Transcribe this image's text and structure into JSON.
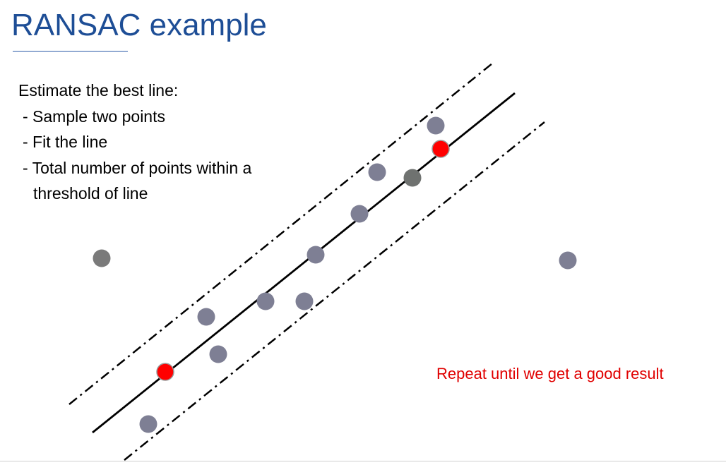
{
  "title": "RANSAC example",
  "instructions": {
    "heading": "Estimate the best line:",
    "steps": [
      "- Sample two points",
      "- Fit the line",
      "- Total number of points within a"
    ],
    "step_continuation": "threshold of line"
  },
  "note": "Repeat until we get a good result",
  "colors": {
    "title": "#1e4e96",
    "point": "#7e7f94",
    "outlier": "#7a7a7a",
    "sample": "#ff0000",
    "note": "#e00000",
    "line": "#000000"
  }
}
